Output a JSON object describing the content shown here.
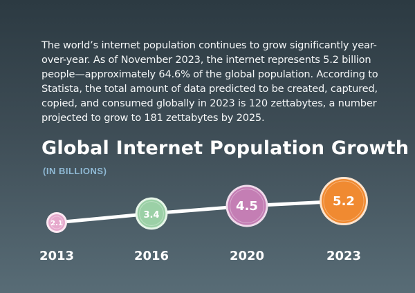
{
  "intro": {
    "paragraph": "The world’s internet population continues to grow significantly year-over-year. As of November 2023, the internet represents 5.2 billion people—approximately 64.6% of the global population. According to Statista, the total amount of data predicted to be created, captured, copied, and consumed globally in 2023 is 120 zettabytes, a number projected to grow to 181 zettabytes by 2025."
  },
  "chart_data": {
    "type": "line",
    "title": "Global Internet Population Growth",
    "subtitle": "(IN BILLIONS)",
    "categories": [
      "2013",
      "2016",
      "2020",
      "2023"
    ],
    "values": [
      2.1,
      3.4,
      4.5,
      5.2
    ],
    "labels": [
      "2.1",
      "3.4",
      "4.5",
      "5.2"
    ],
    "xlabel": "",
    "ylabel": "Billions",
    "ylim": [
      2.0,
      5.5
    ],
    "grid": false,
    "legend": "none",
    "colors": {
      "line": "#ffffff",
      "points": [
        "#e6a8cc",
        "#9bd0a6",
        "#c47eb4",
        "#f08a31"
      ],
      "rings": [
        "#fbe9f2",
        "#e6f5e8",
        "#efdaea",
        "#fde3cc"
      ],
      "point_text": "#ffffff",
      "tick_text": "#ffffff"
    }
  }
}
